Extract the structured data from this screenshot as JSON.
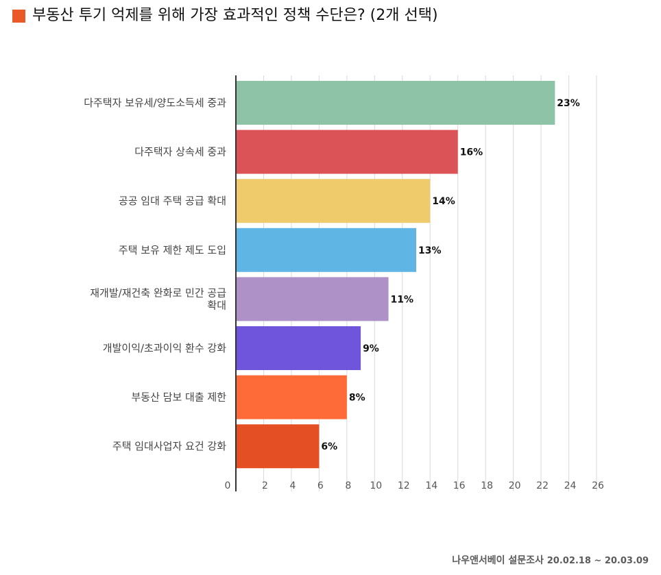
{
  "title": "부동산 투기 억제를 위해 가장 효과적인 정책 수단은? (2개 선택)",
  "source": {
    "name": "나우앤서베이 설문조사",
    "period": "20.02.18 ~ 20.03.09"
  },
  "chart_data": {
    "type": "bar",
    "orientation": "horizontal",
    "title": "부동산 투기 억제를 위해 가장 효과적인 정책 수단은? (2개 선택)",
    "categories": [
      "다주택자 보유세/양도소득세 중과",
      "다주택자 상속세 중과",
      "공공 임대 주택 공급 확대",
      "주택 보유 제한 제도 도입",
      "재개발/재건축 완화로 민간 공급 확대",
      "개발이익/초과이익 환수 강화",
      "부동산 담보 대출 제한",
      "주택 임대사업자 요건 강화"
    ],
    "category_lines": [
      [
        "다주택자 보유세/양도소득세 중과"
      ],
      [
        "다주택자 상속세 중과"
      ],
      [
        "공공 임대 주택 공급 확대"
      ],
      [
        "주택 보유 제한 제도 도입"
      ],
      [
        "재개발/재건축 완화로 민간 공급",
        "확대"
      ],
      [
        "개발이익/초과이익 환수 강화"
      ],
      [
        "부동산 담보 대출 제한"
      ],
      [
        "주택 임대사업자 요건 강화"
      ]
    ],
    "values": [
      23,
      16,
      14,
      13,
      11,
      9,
      8,
      6
    ],
    "value_labels": [
      "23%",
      "16%",
      "14%",
      "13%",
      "11%",
      "9%",
      "8%",
      "6%"
    ],
    "colors": [
      "#8fc3a8",
      "#dc5357",
      "#efcb6b",
      "#5fb6e5",
      "#ad91c7",
      "#6e55db",
      "#fe6b38",
      "#e44f24"
    ],
    "xlim": [
      0,
      26
    ],
    "xticks": [
      0,
      2,
      4,
      6,
      8,
      10,
      12,
      14,
      16,
      18,
      20,
      22,
      24,
      26
    ],
    "grid": true
  }
}
